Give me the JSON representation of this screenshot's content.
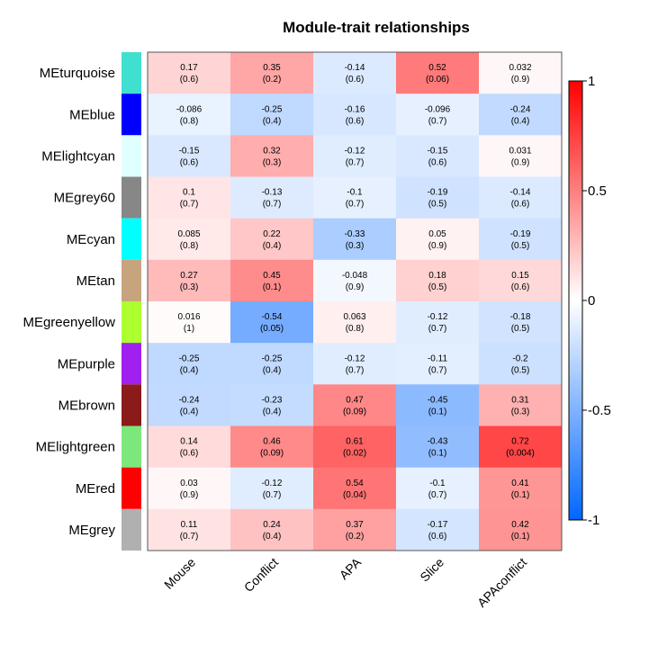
{
  "chart_data": {
    "type": "heatmap",
    "title": "Module-trait relationships",
    "columns": [
      "Mouse",
      "Conflict",
      "APA",
      "Slice",
      "APAconflict"
    ],
    "rows": [
      {
        "name": "MEturquoise",
        "color": "#40E0D0",
        "values": [
          0.17,
          0.35,
          -0.14,
          0.52,
          0.032
        ],
        "labels": [
          "0.17",
          "0.35",
          "-0.14",
          "0.52",
          "0.032"
        ],
        "pvalues": [
          "(0.6)",
          "(0.2)",
          "(0.6)",
          "(0.06)",
          "(0.9)"
        ]
      },
      {
        "name": "MEblue",
        "color": "#0000FF",
        "values": [
          -0.086,
          -0.25,
          -0.16,
          -0.096,
          -0.24
        ],
        "labels": [
          "-0.086",
          "-0.25",
          "-0.16",
          "-0.096",
          "-0.24"
        ],
        "pvalues": [
          "(0.8)",
          "(0.4)",
          "(0.6)",
          "(0.7)",
          "(0.4)"
        ]
      },
      {
        "name": "MElightcyan",
        "color": "#E0FFFF",
        "values": [
          -0.15,
          0.32,
          -0.12,
          -0.15,
          0.031
        ],
        "labels": [
          "-0.15",
          "0.32",
          "-0.12",
          "-0.15",
          "0.031"
        ],
        "pvalues": [
          "(0.6)",
          "(0.3)",
          "(0.7)",
          "(0.6)",
          "(0.9)"
        ]
      },
      {
        "name": "MEgrey60",
        "color": "#878787",
        "values": [
          0.1,
          -0.13,
          -0.1,
          -0.19,
          -0.14
        ],
        "labels": [
          "0.1",
          "-0.13",
          "-0.1",
          "-0.19",
          "-0.14"
        ],
        "pvalues": [
          "(0.7)",
          "(0.7)",
          "(0.7)",
          "(0.5)",
          "(0.6)"
        ]
      },
      {
        "name": "MEcyan",
        "color": "#00FFFF",
        "values": [
          0.085,
          0.22,
          -0.33,
          0.05,
          -0.19
        ],
        "labels": [
          "0.085",
          "0.22",
          "-0.33",
          "0.05",
          "-0.19"
        ],
        "pvalues": [
          "(0.8)",
          "(0.4)",
          "(0.3)",
          "(0.9)",
          "(0.5)"
        ]
      },
      {
        "name": "MEtan",
        "color": "#C8A47E",
        "values": [
          0.27,
          0.45,
          -0.048,
          0.18,
          0.15
        ],
        "labels": [
          "0.27",
          "0.45",
          "-0.048",
          "0.18",
          "0.15"
        ],
        "pvalues": [
          "(0.3)",
          "(0.1)",
          "(0.9)",
          "(0.5)",
          "(0.6)"
        ]
      },
      {
        "name": "MEgreenyellow",
        "color": "#ADFF2F",
        "values": [
          0.016,
          -0.54,
          0.063,
          -0.12,
          -0.18
        ],
        "labels": [
          "0.016",
          "-0.54",
          "0.063",
          "-0.12",
          "-0.18"
        ],
        "pvalues": [
          "(1)",
          "(0.05)",
          "(0.8)",
          "(0.7)",
          "(0.5)"
        ]
      },
      {
        "name": "MEpurple",
        "color": "#A020F0",
        "values": [
          -0.25,
          -0.25,
          -0.12,
          -0.11,
          -0.2
        ],
        "labels": [
          "-0.25",
          "-0.25",
          "-0.12",
          "-0.11",
          "-0.2"
        ],
        "pvalues": [
          "(0.4)",
          "(0.4)",
          "(0.7)",
          "(0.7)",
          "(0.5)"
        ]
      },
      {
        "name": "MEbrown",
        "color": "#8B1A1A",
        "values": [
          -0.24,
          -0.23,
          0.47,
          -0.45,
          0.31
        ],
        "labels": [
          "-0.24",
          "-0.23",
          "0.47",
          "-0.45",
          "0.31"
        ],
        "pvalues": [
          "(0.4)",
          "(0.4)",
          "(0.09)",
          "(0.1)",
          "(0.3)"
        ]
      },
      {
        "name": "MElightgreen",
        "color": "#7CE87C",
        "values": [
          0.14,
          0.46,
          0.61,
          -0.43,
          0.72
        ],
        "labels": [
          "0.14",
          "0.46",
          "0.61",
          "-0.43",
          "0.72"
        ],
        "pvalues": [
          "(0.6)",
          "(0.09)",
          "(0.02)",
          "(0.1)",
          "(0.004)"
        ]
      },
      {
        "name": "MEred",
        "color": "#FF0000",
        "values": [
          0.03,
          -0.12,
          0.54,
          -0.1,
          0.41
        ],
        "labels": [
          "0.03",
          "-0.12",
          "0.54",
          "-0.1",
          "0.41"
        ],
        "pvalues": [
          "(0.9)",
          "(0.7)",
          "(0.04)",
          "(0.7)",
          "(0.1)"
        ]
      },
      {
        "name": "MEgrey",
        "color": "#B0B0B0",
        "values": [
          0.11,
          0.24,
          0.37,
          -0.17,
          0.42
        ],
        "labels": [
          "0.11",
          "0.24",
          "0.37",
          "-0.17",
          "0.42"
        ],
        "pvalues": [
          "(0.7)",
          "(0.4)",
          "(0.2)",
          "(0.6)",
          "(0.1)"
        ]
      }
    ],
    "color_scale": {
      "min": -1,
      "max": 1,
      "low": "#0066FF",
      "mid": "#FFFFFF",
      "high": "#FF0000"
    },
    "colorbar": {
      "ticks": [
        1,
        0.5,
        0,
        -0.5,
        -1
      ],
      "tick_labels": [
        "1",
        "0.5",
        "0",
        "-0.5",
        "-1"
      ]
    }
  }
}
